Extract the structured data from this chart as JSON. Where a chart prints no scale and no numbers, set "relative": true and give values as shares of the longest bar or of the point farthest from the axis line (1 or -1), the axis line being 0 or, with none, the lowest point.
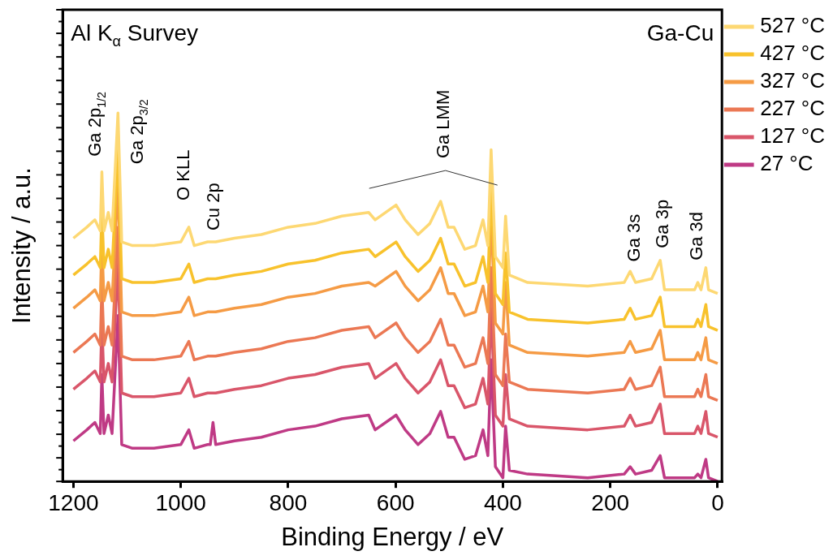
{
  "chart_data": {
    "type": "line",
    "title": "Al K$_{α}$ Survey",
    "xlabel": "Binding Energy / eV",
    "ylabel": "Intensity / a.u.",
    "relative": true,
    "legend": "right",
    "grid": false,
    "xlim": [
      1220,
      -8
    ],
    "xticks": [
      1200,
      1000,
      800,
      600,
      400,
      200,
      0
    ],
    "x": [
      1200,
      1175,
      1160,
      1150,
      1147,
      1143,
      1135,
      1128,
      1117,
      1110,
      1090,
      1050,
      1000,
      985,
      975,
      950,
      945,
      940,
      935,
      900,
      850,
      800,
      750,
      700,
      650,
      638,
      599,
      582,
      558,
      536,
      516,
      502,
      491,
      471,
      451,
      437,
      428,
      422,
      414,
      400,
      395,
      388,
      354,
      242,
      174,
      163,
      153,
      123,
      107,
      99,
      43,
      37,
      31,
      22,
      17,
      0
    ],
    "series": [
      {
        "name": "527 °C",
        "color": "#fdd873",
        "values": [
          0.66,
          0.69,
          0.71,
          0.68,
          0.84,
          0.68,
          0.73,
          0.68,
          1.0,
          0.65,
          0.64,
          0.64,
          0.65,
          0.69,
          0.64,
          0.65,
          0.65,
          0.65,
          0.65,
          0.66,
          0.67,
          0.69,
          0.7,
          0.72,
          0.73,
          0.71,
          0.75,
          0.71,
          0.67,
          0.7,
          0.76,
          0.69,
          0.69,
          0.63,
          0.64,
          0.71,
          0.64,
          0.9,
          0.61,
          0.58,
          0.72,
          0.56,
          0.54,
          0.53,
          0.54,
          0.57,
          0.54,
          0.55,
          0.6,
          0.52,
          0.52,
          0.54,
          0.52,
          0.58,
          0.52,
          0.51
        ]
      },
      {
        "name": "427 °C",
        "color": "#f8c22c",
        "values": [
          0.56,
          0.59,
          0.61,
          0.58,
          0.74,
          0.58,
          0.63,
          0.58,
          0.9,
          0.55,
          0.54,
          0.54,
          0.55,
          0.59,
          0.54,
          0.55,
          0.55,
          0.55,
          0.55,
          0.56,
          0.57,
          0.59,
          0.6,
          0.62,
          0.63,
          0.61,
          0.65,
          0.61,
          0.57,
          0.6,
          0.66,
          0.59,
          0.59,
          0.53,
          0.54,
          0.61,
          0.54,
          0.8,
          0.51,
          0.48,
          0.62,
          0.46,
          0.44,
          0.43,
          0.44,
          0.47,
          0.44,
          0.45,
          0.5,
          0.42,
          0.42,
          0.44,
          0.42,
          0.48,
          0.42,
          0.41
        ]
      },
      {
        "name": "327 °C",
        "color": "#f59b45",
        "values": [
          0.47,
          0.5,
          0.52,
          0.49,
          0.65,
          0.49,
          0.54,
          0.49,
          0.81,
          0.46,
          0.45,
          0.45,
          0.46,
          0.5,
          0.45,
          0.46,
          0.46,
          0.46,
          0.46,
          0.47,
          0.48,
          0.5,
          0.51,
          0.53,
          0.54,
          0.53,
          0.57,
          0.53,
          0.49,
          0.52,
          0.58,
          0.51,
          0.51,
          0.45,
          0.46,
          0.53,
          0.46,
          0.72,
          0.43,
          0.4,
          0.54,
          0.37,
          0.35,
          0.34,
          0.35,
          0.38,
          0.35,
          0.36,
          0.41,
          0.33,
          0.33,
          0.35,
          0.33,
          0.39,
          0.33,
          0.32
        ]
      },
      {
        "name": "227 °C",
        "color": "#eb7854",
        "values": [
          0.35,
          0.38,
          0.4,
          0.37,
          0.53,
          0.37,
          0.42,
          0.37,
          0.69,
          0.34,
          0.33,
          0.33,
          0.34,
          0.38,
          0.33,
          0.34,
          0.34,
          0.34,
          0.34,
          0.35,
          0.36,
          0.38,
          0.39,
          0.41,
          0.42,
          0.39,
          0.43,
          0.39,
          0.35,
          0.38,
          0.44,
          0.37,
          0.37,
          0.31,
          0.32,
          0.39,
          0.32,
          0.58,
          0.29,
          0.26,
          0.4,
          0.27,
          0.25,
          0.24,
          0.25,
          0.28,
          0.25,
          0.26,
          0.31,
          0.23,
          0.23,
          0.25,
          0.23,
          0.29,
          0.23,
          0.22
        ]
      },
      {
        "name": "127 °C",
        "color": "#d9566a",
        "values": [
          0.25,
          0.28,
          0.3,
          0.27,
          0.43,
          0.27,
          0.32,
          0.27,
          0.59,
          0.24,
          0.23,
          0.23,
          0.24,
          0.28,
          0.23,
          0.24,
          0.24,
          0.24,
          0.24,
          0.25,
          0.26,
          0.28,
          0.29,
          0.31,
          0.32,
          0.28,
          0.32,
          0.28,
          0.24,
          0.27,
          0.33,
          0.26,
          0.26,
          0.2,
          0.21,
          0.28,
          0.21,
          0.47,
          0.18,
          0.15,
          0.29,
          0.17,
          0.15,
          0.14,
          0.15,
          0.18,
          0.15,
          0.16,
          0.21,
          0.13,
          0.13,
          0.15,
          0.13,
          0.19,
          0.13,
          0.12
        ]
      },
      {
        "name": "27 °C",
        "color": "#bf3a85",
        "values": [
          0.11,
          0.14,
          0.16,
          0.13,
          0.29,
          0.13,
          0.18,
          0.13,
          0.45,
          0.1,
          0.09,
          0.09,
          0.1,
          0.14,
          0.09,
          0.1,
          0.1,
          0.16,
          0.1,
          0.11,
          0.12,
          0.14,
          0.15,
          0.17,
          0.18,
          0.14,
          0.18,
          0.14,
          0.1,
          0.13,
          0.19,
          0.12,
          0.12,
          0.06,
          0.07,
          0.14,
          0.07,
          0.33,
          0.04,
          0.01,
          0.15,
          0.03,
          0.02,
          0.01,
          0.02,
          0.04,
          0.02,
          0.03,
          0.07,
          0.01,
          0.01,
          0.02,
          0.01,
          0.06,
          0.01,
          0.0
        ]
      }
    ],
    "annotations": [
      "Ga-Cu",
      {
        "text": "Ga 2p$_{1/2}$",
        "x": 1147,
        "y": 0.84
      },
      {
        "text": "Ga 2p$_{3/2}$",
        "x": 1117,
        "y": 1.0
      },
      {
        "text": "O KLL",
        "x": 985,
        "y": 0.69
      },
      {
        "text": "Cu 2p",
        "x": 940,
        "y": 0.65
      },
      {
        "text": "Ga LMM",
        "x": 516,
        "y": 0.76
      },
      {
        "text": "Ga 3s",
        "x": 163,
        "y": 0.57
      },
      {
        "text": "Ga 3p",
        "x": 107,
        "y": 0.6
      },
      {
        "text": "Ga 3d",
        "x": 22,
        "y": 0.58
      }
    ]
  }
}
